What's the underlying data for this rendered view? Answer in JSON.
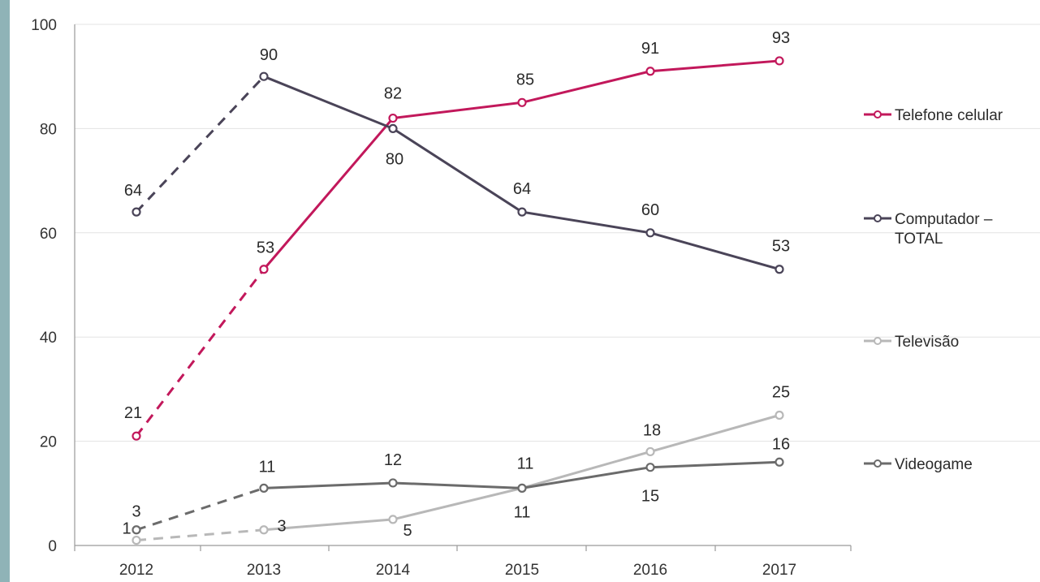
{
  "page": {
    "strip_color": "#8fb3b7"
  },
  "chart_data": {
    "type": "line",
    "title": "",
    "xlabel": "",
    "ylabel": "",
    "ylim": [
      0,
      100
    ],
    "yticks": [
      "0",
      "20",
      "40",
      "60",
      "80",
      "100"
    ],
    "categories": [
      "2012",
      "2013",
      "2014",
      "2015",
      "2016",
      "2017"
    ],
    "grid": "horizontal",
    "legend_position": "right",
    "series": [
      {
        "name": "Telefone celular",
        "values": [
          21,
          53,
          82,
          85,
          91,
          93
        ],
        "labels": [
          "21",
          "53",
          "82",
          "85",
          "91",
          "93"
        ],
        "color": "#c2185b",
        "dashed_first_segment": true
      },
      {
        "name": "Computador – TOTAL",
        "legend_lines": [
          "Computador –",
          "TOTAL"
        ],
        "values": [
          64,
          90,
          80,
          64,
          60,
          53
        ],
        "labels": [
          "64",
          "90",
          "80",
          "64",
          "60",
          "53"
        ],
        "color": "#4a4458",
        "dashed_first_segment": true
      },
      {
        "name": "Televisão",
        "values": [
          1,
          3,
          5,
          11,
          18,
          25
        ],
        "labels": [
          "1",
          "3",
          "5",
          "11",
          "18",
          "25"
        ],
        "color": "#b8b8b8",
        "dashed_first_segment": true
      },
      {
        "name": "Videogame",
        "values": [
          3,
          11,
          12,
          11,
          15,
          16
        ],
        "labels": [
          "3",
          "11",
          "12",
          "11",
          "15",
          "16"
        ],
        "color": "#6b6b6b",
        "dashed_first_segment": true
      }
    ]
  }
}
